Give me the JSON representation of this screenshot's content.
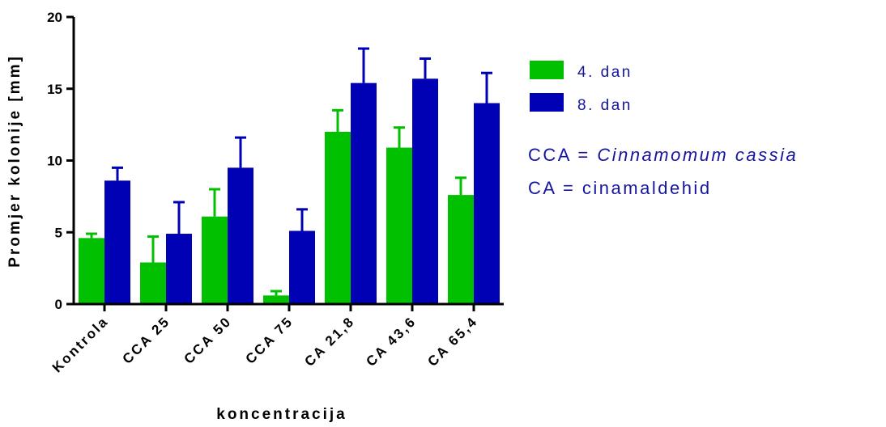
{
  "chart_data": {
    "type": "bar",
    "categories": [
      "Kontrola",
      "CCA 25",
      "CCA 50",
      "CCA 75",
      "CA 21,8",
      "CA 43,6",
      "CA 65,4"
    ],
    "series": [
      {
        "name": "4. dan",
        "color": "#00c000",
        "values": [
          4.6,
          2.9,
          6.1,
          0.6,
          12.0,
          10.9,
          7.6
        ],
        "errors": [
          0.3,
          1.8,
          1.9,
          0.3,
          1.5,
          1.4,
          1.2
        ]
      },
      {
        "name": "8. dan",
        "color": "#0000b4",
        "values": [
          8.6,
          4.9,
          9.5,
          5.1,
          15.4,
          15.7,
          14.0
        ],
        "errors": [
          0.9,
          2.2,
          2.1,
          1.5,
          2.4,
          1.4,
          2.1
        ]
      }
    ],
    "ylim": [
      0,
      20
    ],
    "yticks": [
      "0",
      "5",
      "10",
      "15",
      "20"
    ],
    "ylabel": "Promjer kolonije [mm]",
    "xlabel": "koncentracija",
    "legend_position": "right"
  },
  "notes": {
    "cca_abbr": "CCA = ",
    "cca_name": "Cinnamomum cassia",
    "ca_line": "CA = cinamaldehid"
  }
}
